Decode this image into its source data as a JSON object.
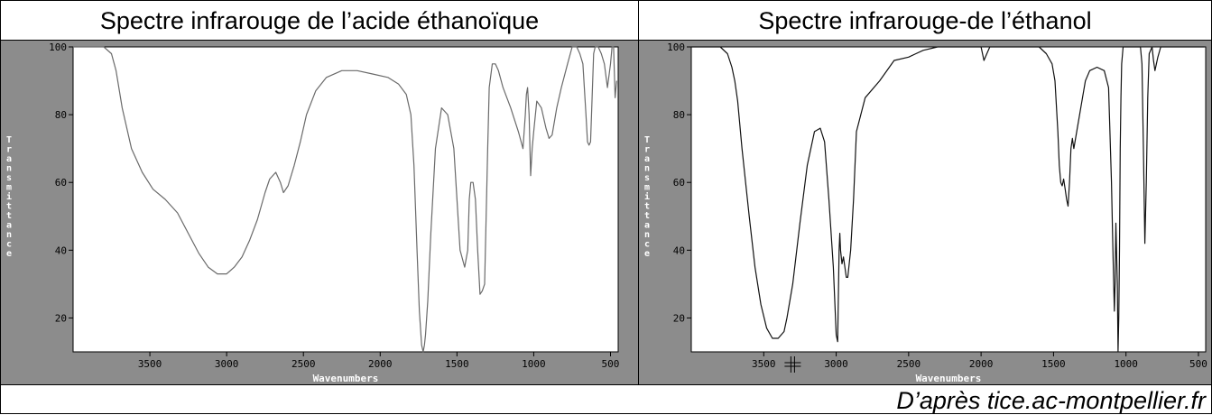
{
  "header": {
    "left_title": "Spectre infrarouge de l’acide éthanoïque",
    "right_title": "Spectre infrarouge-de l’éthanol"
  },
  "footer": {
    "credit": "D’après tice.ac-montpellier.fr"
  },
  "colors": {
    "frame": "#8c8c8c",
    "plot_bg": "#ffffff",
    "axis_text": "#ffffff",
    "tick_text": "#000000",
    "line_left": "#6a6a6a",
    "line_right": "#111111"
  },
  "chart_data": [
    {
      "type": "line",
      "title": "Spectre infrarouge de l’acide éthanoïque",
      "xlabel": "Wavenumbers",
      "ylabel": "Transmittance",
      "xlim": [
        4000,
        450
      ],
      "ylim": [
        10,
        100
      ],
      "x_reversed": true,
      "x_ticks": [
        3500,
        3000,
        2500,
        2000,
        1500,
        1000,
        500
      ],
      "y_ticks": [
        20,
        40,
        60,
        80,
        100
      ],
      "grid": false,
      "series": [
        {
          "x": [
            4000,
            3800,
            3750,
            3720,
            3680,
            3620,
            3550,
            3480,
            3400,
            3320,
            3250,
            3180,
            3120,
            3060,
            3000,
            2950,
            2900,
            2850,
            2800,
            2750,
            2720,
            2680,
            2650,
            2630,
            2600,
            2560,
            2520,
            2480,
            2420,
            2350,
            2250,
            2150,
            2050,
            1950,
            1880,
            1830,
            1800,
            1780,
            1760,
            1745,
            1730,
            1720,
            1712,
            1705,
            1690,
            1670,
            1640,
            1600,
            1560,
            1520,
            1480,
            1450,
            1430,
            1420,
            1410,
            1395,
            1380,
            1365,
            1350,
            1335,
            1320,
            1300,
            1290,
            1270,
            1250,
            1230,
            1200,
            1150,
            1100,
            1070,
            1055,
            1048,
            1040,
            1030,
            1020,
            1010,
            1000,
            980,
            950,
            920,
            900,
            880,
            850,
            820,
            780,
            750,
            720,
            700,
            680,
            660,
            650,
            640,
            630,
            620,
            610,
            600,
            580,
            560,
            540,
            520,
            500,
            490,
            480,
            470,
            460
          ],
          "y": [
            100,
            100,
            98,
            93,
            82,
            70,
            63,
            58,
            55,
            51,
            45,
            39,
            35,
            33,
            33,
            35,
            38,
            43,
            49,
            57,
            61,
            63,
            60,
            57,
            59,
            65,
            72,
            80,
            87,
            91,
            93,
            93,
            92,
            91,
            89,
            86,
            80,
            65,
            40,
            22,
            12,
            10,
            12,
            15,
            25,
            45,
            70,
            82,
            80,
            70,
            40,
            35,
            40,
            55,
            60,
            60,
            55,
            40,
            27,
            28,
            30,
            70,
            88,
            95,
            95,
            93,
            88,
            82,
            75,
            70,
            80,
            86,
            88,
            80,
            62,
            70,
            75,
            84,
            82,
            76,
            73,
            74,
            82,
            88,
            95,
            100,
            100,
            98,
            95,
            80,
            72,
            71,
            72,
            85,
            98,
            100,
            100,
            98,
            95,
            88,
            95,
            100,
            100,
            85,
            90
          ]
        }
      ]
    },
    {
      "type": "line",
      "title": "Spectre infrarouge-de l’éthanol",
      "xlabel": "Wavenumbers",
      "ylabel": "Transmittance",
      "xlim": [
        4000,
        450
      ],
      "ylim": [
        10,
        100
      ],
      "x_reversed": true,
      "x_ticks": [
        3500,
        3000,
        2500,
        2000,
        1500,
        1000,
        500
      ],
      "y_ticks": [
        20,
        40,
        60,
        80,
        100
      ],
      "grid": false,
      "series": [
        {
          "x": [
            4000,
            3800,
            3750,
            3720,
            3700,
            3680,
            3650,
            3600,
            3560,
            3520,
            3480,
            3440,
            3400,
            3360,
            3340,
            3300,
            3250,
            3200,
            3150,
            3110,
            3080,
            3050,
            3020,
            3000,
            2990,
            2980,
            2975,
            2970,
            2960,
            2950,
            2940,
            2930,
            2920,
            2900,
            2880,
            2860,
            2800,
            2700,
            2600,
            2500,
            2450,
            2400,
            2300,
            2200,
            2100,
            2000,
            1980,
            1960,
            1940,
            1900,
            1800,
            1700,
            1650,
            1600,
            1550,
            1510,
            1490,
            1470,
            1460,
            1450,
            1440,
            1430,
            1420,
            1410,
            1400,
            1390,
            1380,
            1370,
            1360,
            1340,
            1320,
            1300,
            1280,
            1250,
            1200,
            1150,
            1120,
            1100,
            1090,
            1080,
            1075,
            1070,
            1060,
            1055,
            1050,
            1045,
            1040,
            1035,
            1030,
            1020,
            1000,
            980,
            960,
            940,
            920,
            900,
            890,
            880,
            870,
            860,
            850,
            840,
            820,
            810,
            800,
            780,
            760,
            740,
            720,
            700,
            650,
            600,
            550,
            500,
            460
          ],
          "y": [
            100,
            100,
            98,
            94,
            90,
            84,
            70,
            50,
            35,
            24,
            17,
            14,
            14,
            16,
            20,
            30,
            48,
            65,
            75,
            76,
            72,
            55,
            35,
            15,
            13,
            40,
            45,
            40,
            36,
            38,
            35,
            32,
            32,
            40,
            55,
            75,
            85,
            90,
            96,
            97,
            98,
            99,
            100,
            100,
            100,
            100,
            96,
            98,
            100,
            100,
            100,
            100,
            100,
            100,
            98,
            95,
            90,
            75,
            65,
            60,
            59,
            61,
            58,
            55,
            53,
            60,
            70,
            73,
            70,
            75,
            80,
            85,
            90,
            93,
            94,
            93,
            88,
            60,
            40,
            22,
            30,
            48,
            30,
            10,
            20,
            40,
            70,
            85,
            95,
            100,
            100,
            100,
            100,
            100,
            100,
            100,
            95,
            70,
            42,
            60,
            85,
            98,
            100,
            96,
            93,
            97,
            100,
            100,
            100,
            100,
            100,
            100,
            100,
            100,
            100
          ]
        }
      ]
    }
  ]
}
